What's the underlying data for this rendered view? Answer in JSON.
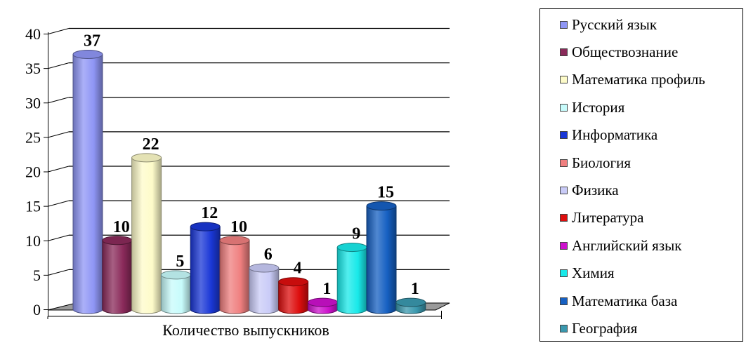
{
  "chart_data": {
    "type": "bar",
    "categories": [
      "Количество выпускников"
    ],
    "series": [
      {
        "name": "Русский язык",
        "values": [
          37
        ],
        "color": "#8f96f5"
      },
      {
        "name": "Обществознание",
        "values": [
          10
        ],
        "color": "#8a2a5a"
      },
      {
        "name": "Математика профиль",
        "values": [
          22
        ],
        "color": "#fdfbc9"
      },
      {
        "name": "История",
        "values": [
          5
        ],
        "color": "#c7fbfb"
      },
      {
        "name": "Информатика",
        "values": [
          12
        ],
        "color": "#1a37d6"
      },
      {
        "name": "Биология",
        "values": [
          10
        ],
        "color": "#ef7f7f"
      },
      {
        "name": "Физика",
        "values": [
          6
        ],
        "color": "#c9cbf7"
      },
      {
        "name": "Литература",
        "values": [
          4
        ],
        "color": "#dd0e0e"
      },
      {
        "name": "Английский язык",
        "values": [
          1
        ],
        "color": "#cc11cc"
      },
      {
        "name": "Химия",
        "values": [
          9
        ],
        "color": "#18e9e9"
      },
      {
        "name": "Математика база",
        "values": [
          15
        ],
        "color": "#1660c2"
      },
      {
        "name": "География",
        "values": [
          1
        ],
        "color": "#3a98ae"
      }
    ],
    "ylim": [
      0,
      40
    ],
    "yticks": [
      "0",
      "5",
      "10",
      "15",
      "20",
      "25",
      "30",
      "35",
      "40"
    ],
    "grid": true,
    "data_labels": true,
    "legend_position": "right"
  }
}
